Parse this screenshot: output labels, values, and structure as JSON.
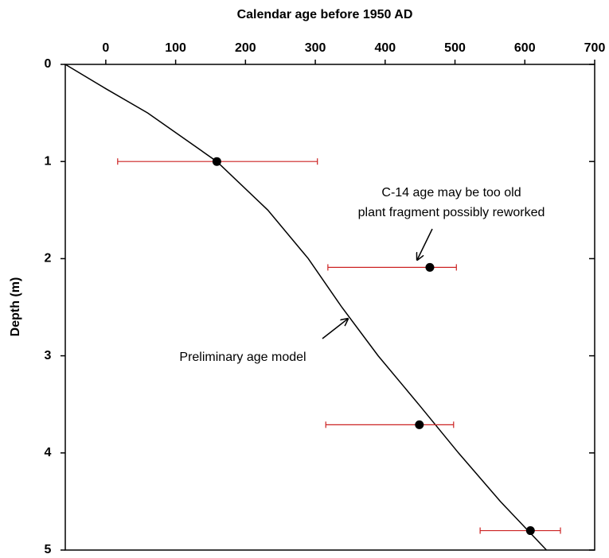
{
  "chart_data": {
    "type": "scatter",
    "title": "Calendar age before 1950 AD",
    "ylabel": "Depth (m)",
    "xlim": [
      -58,
      700
    ],
    "xticks": [
      0,
      100,
      200,
      300,
      400,
      500,
      600,
      700
    ],
    "ylim": [
      0,
      5
    ],
    "yticks": [
      0,
      1,
      2,
      3,
      4,
      5
    ],
    "y_inverted": true,
    "x_axis_position": "top",
    "point_color": "#000000",
    "error_color": "#cc2222",
    "line_color": "#000000",
    "x": [
      159,
      464,
      449,
      608
    ],
    "y": [
      1.0,
      2.09,
      3.71,
      4.8
    ],
    "xerr_minus": [
      142,
      146,
      134,
      72
    ],
    "xerr_plus": [
      144,
      38,
      49,
      43
    ],
    "model": {
      "x": [
        -58,
        0,
        60,
        159,
        232,
        290,
        338,
        390,
        448,
        505,
        565,
        631
      ],
      "y": [
        0,
        0.25,
        0.5,
        1.0,
        1.5,
        2.0,
        2.5,
        3.0,
        3.5,
        4.0,
        4.5,
        5.0
      ]
    },
    "annotations": [
      {
        "lines": [
          "C-14 age may be too old",
          "plant fragment possibly reworked"
        ]
      },
      {
        "lines": [
          "Preliminary age model"
        ]
      }
    ]
  }
}
